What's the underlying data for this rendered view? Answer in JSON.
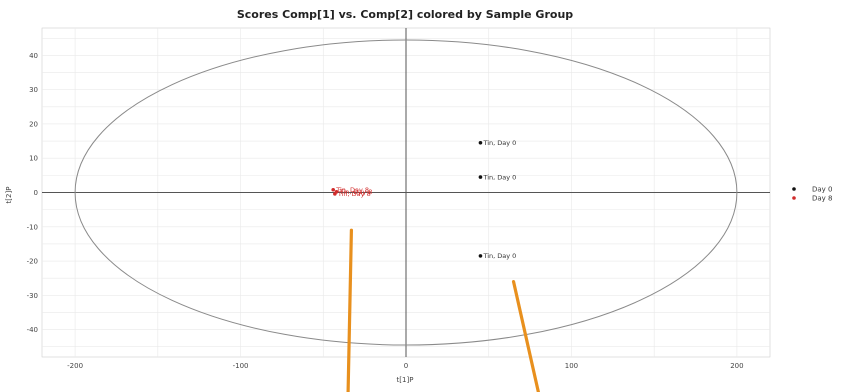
{
  "chart_data": {
    "type": "scatter",
    "title": "Scores Comp[1] vs. Comp[2] colored by Sample Group",
    "xlabel": "t[1]P",
    "ylabel": "t[2]P",
    "xlim": [
      -220,
      220
    ],
    "ylim": [
      -48,
      48
    ],
    "x_ticks": [
      -200,
      -100,
      0,
      100,
      200
    ],
    "y_ticks": [
      -40,
      -30,
      -20,
      -10,
      0,
      10,
      20,
      30,
      40
    ],
    "grid": true,
    "ellipse": {
      "cx": 0,
      "cy": 0,
      "rx": 200,
      "ry": 44.5
    },
    "legend_position": "right",
    "series": [
      {
        "name": "Day 0",
        "color": "#111111",
        "points": [
          {
            "x": 45,
            "y": 14.5,
            "label": "Tin, Day 0"
          },
          {
            "x": 45,
            "y": 4.5,
            "label": "Tin, Day 0"
          },
          {
            "x": 45,
            "y": -18.5,
            "label": "Tin, Day 0"
          }
        ]
      },
      {
        "name": "Day 8",
        "color": "#d12b2b",
        "points": [
          {
            "x": -44,
            "y": 0.8,
            "label": "Tin, Day 8"
          },
          {
            "x": -43,
            "y": -0.4,
            "label": "Tin, Day 8"
          },
          {
            "x": -42,
            "y": 0.2,
            "label": "Tin, Day 8"
          }
        ]
      }
    ],
    "annotations": {
      "arrow_color": "#e8901e",
      "arrows": [
        {
          "from": [
            -35,
            -70
          ],
          "to": [
            -33,
            -11
          ]
        },
        {
          "from": [
            80,
            -70
          ],
          "to": [
            65,
            -26
          ]
        }
      ]
    }
  }
}
